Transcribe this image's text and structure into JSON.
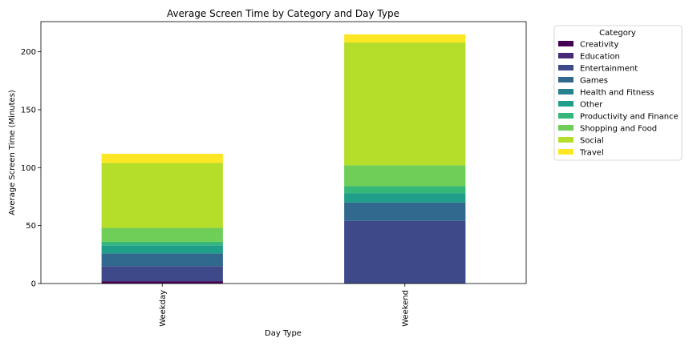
{
  "chart_data": {
    "type": "bar",
    "stacked": true,
    "title": "Average Screen Time by Category and Day Type",
    "xlabel": "Day Type",
    "ylabel": "Average Screen Time (Minutes)",
    "categories": [
      "Weekday",
      "Weekend"
    ],
    "ylim": [
      0,
      226
    ],
    "yticks": [
      0,
      50,
      100,
      150,
      200
    ],
    "legend": {
      "title": "Category",
      "placement": "outside-right-top"
    },
    "series": [
      {
        "name": "Creativity",
        "color": "#440154",
        "values": [
          2,
          0
        ]
      },
      {
        "name": "Education",
        "color": "#482878",
        "values": [
          0,
          0
        ]
      },
      {
        "name": "Entertainment",
        "color": "#3e4989",
        "values": [
          13,
          54
        ]
      },
      {
        "name": "Games",
        "color": "#31688e",
        "values": [
          11,
          16
        ]
      },
      {
        "name": "Health and Fitness",
        "color": "#26828e",
        "values": [
          0,
          0
        ]
      },
      {
        "name": "Other",
        "color": "#1f9e89",
        "values": [
          7,
          8
        ]
      },
      {
        "name": "Productivity and Finance",
        "color": "#35b779",
        "values": [
          3,
          6
        ]
      },
      {
        "name": "Shopping and Food",
        "color": "#6ece58",
        "values": [
          12,
          18
        ]
      },
      {
        "name": "Social",
        "color": "#b5de2b",
        "values": [
          56,
          106
        ]
      },
      {
        "name": "Travel",
        "color": "#fde725",
        "values": [
          8,
          7
        ]
      }
    ]
  }
}
